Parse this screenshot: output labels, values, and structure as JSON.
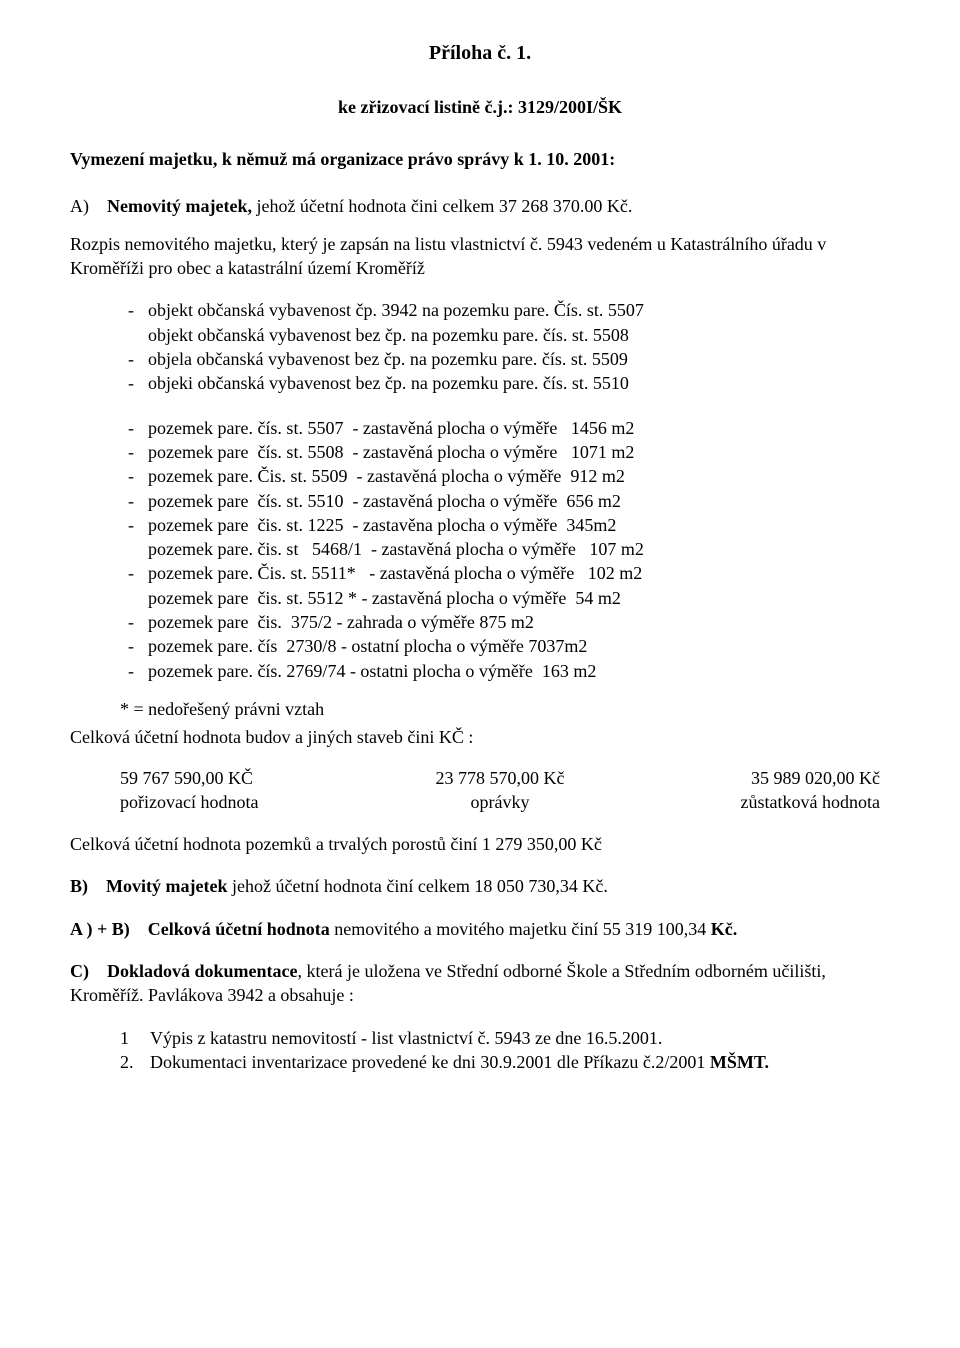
{
  "colors": {
    "text": "#000000",
    "background": "#ffffff"
  },
  "title": "Příloha č. 1.",
  "subtitle": "ke zřizovací listině č.j.: 3129/200I/ŠK",
  "vymez": "Vymezení majetku, k němuž má organizace právo správy k 1. 10. 2001:",
  "secA": {
    "label": "A)",
    "lead": "Nemovitý majetek, ",
    "rest": "jehož účetní hodnota čini   celkem 37 268 370.00 Kč."
  },
  "rozpis1": "Rozpis nemovitého majetku, který je zapsán na listu vlastnictví č. 5943 vedeném u Katastrálního úřadu v Kroměříži pro obec a katastrální území  Kroměříž",
  "objekty": [
    "objekt občanská vybavenost čp. 3942 na pozemku pare. Čís. st. 5507",
    "objekt občanská vybavenost bez čp. na pozemku pare. čís. st. 5508",
    "objela občanská vybavenost bez čp. na pozemku pare. čís. st. 5509",
    "objeki občanská vybavenost bez čp. na pozemku pare. čís. st. 5510"
  ],
  "objekty_dash": [
    "-",
    "",
    "-",
    "-"
  ],
  "pozemky": [
    "pozemek pare. čís. st. 5507  - zastavěná plocha o výměře   1456 m2",
    "pozemek pare  čís. st. 5508  - zastavěná plocha o výměre   1071 m2",
    "pozemek pare. Čis. st. 5509  - zastavěná plocha o výměře  912 m2",
    "pozemek pare  čís. st. 5510  - zastavěná plocha o výměře  656 m2",
    "pozemek pare  čis. st. 1225  - zastavěna plocha o výměře  345m2",
    "pozemek pare. čis. st   5468/1  - zastavěná plocha o výměře   107 m2",
    "pozemek pare. Čis. st. 5511*   - zastavěná plocha o výměře   102 m2",
    "pozemek pare  čis. st. 5512 * - zastavěná plocha o výměře  54 m2",
    "pozemek pare  čis.  375/2 - zahrada o výměře 875 m2",
    "pozemek pare. čís  2730/8 - ostatní plocha o výměře 7037m2",
    "pozemek pare. čís. 2769/74 - ostatni plocha o výměře  163 m2"
  ],
  "pozemky_dash": [
    "-",
    "-",
    "-",
    "-",
    "-",
    "",
    "-",
    "",
    "-",
    "-",
    "-"
  ],
  "note": "* = nedořešený právni vztah",
  "celk1": "Celková účetní hodnota budov a jiných staveb čini KČ :",
  "trio": {
    "v1": "59 767 590,00 KČ",
    "l1": "pořizovací hodnota",
    "v2": "23 778 570,00 Kč",
    "l2": "oprávky",
    "v3": "35 989 020,00 Kč",
    "l3": "zůstatková hodnota"
  },
  "celk2": "Celková účetní hodnota pozemků a trvalých porostů činí   1 279 350,00 Kč",
  "secB": {
    "label": "B)",
    "lead": "Movitý majetek ",
    "rest": "jehož účetní hodnota činí celkem   18 050 730,34 Kč."
  },
  "secAB": {
    "label": "A ) + B)",
    "lead": "Celková účetní hodnota ",
    "rest": "nemovitého a movitého majetku činí   55 319 100,34 Kč."
  },
  "secC": {
    "label": "C)",
    "lead": "Dokladová dokumentace",
    "rest": ", která je uložena ve  Střední odborné Škole a Středním odborném učilišti, Kroměříž. Pavlákova 3942 a  obsahuje :"
  },
  "cItems": [
    {
      "n": "1",
      "t": "Výpis z katastru nemovitostí - list vlastnictví č. 5943 ze dne 16.5.2001."
    },
    {
      "n": "2.",
      "t": "Dokumentaci inventarizace provedené ke dni 30.9.2001 dle Příkazu č.2/2001 ",
      "b": "MŠMT."
    }
  ]
}
